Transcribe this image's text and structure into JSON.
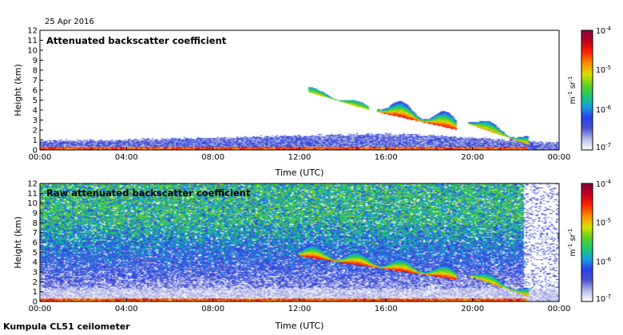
{
  "header": {
    "date": "25 Apr 2016"
  },
  "footer": {
    "instrument": "Kumpula CL51 ceilometer"
  },
  "colorbar": {
    "tick_labels": [
      "10-4",
      "10-5",
      "10-6",
      "10-7"
    ],
    "tick_values": [
      -4,
      -5,
      -6,
      -7
    ],
    "label": "m-1 sr-1",
    "range_log10": [
      -7,
      -4
    ],
    "colormap": [
      "#ffffff",
      "#b8bde8",
      "#4a55d0",
      "#2a40e8",
      "#18a0e0",
      "#20c870",
      "#60d020",
      "#d8e000",
      "#ff9000",
      "#ff2000",
      "#c00020",
      "#8a0040"
    ]
  },
  "chart_data": [
    {
      "type": "heatmap",
      "title": "Attenuated backscatter coefficient",
      "xlabel": "Time (UTC)",
      "ylabel": "Height (km)",
      "x_tick_labels": [
        "00:00",
        "04:00",
        "08:00",
        "12:00",
        "16:00",
        "20:00",
        "00:00"
      ],
      "x_tick_hours": [
        0,
        4,
        8,
        12,
        16,
        20,
        24
      ],
      "xlim_hours": [
        0,
        24
      ],
      "y_ticks": [
        0,
        1,
        2,
        3,
        4,
        5,
        6,
        7,
        8,
        9,
        10,
        11,
        12
      ],
      "ylim_km": [
        0,
        12
      ],
      "features": [
        {
          "name": "boundary-layer",
          "start_h": 0,
          "end_h": 24,
          "bottom_km": 0,
          "top_km_by_hour": [
            [
              0,
              0.8
            ],
            [
              4,
              0.9
            ],
            [
              8,
              1.1
            ],
            [
              12,
              1.3
            ],
            [
              16,
              1.5
            ],
            [
              20,
              1.1
            ],
            [
              24,
              0.6
            ]
          ],
          "log10_range": [
            -6.8,
            -6.2
          ]
        },
        {
          "name": "surface-layer",
          "start_h": 0,
          "end_h": 22.5,
          "bottom_km": 0,
          "top_km": 0.35,
          "log10_range": [
            -5.0,
            -4.3
          ]
        },
        {
          "name": "cloud-layer",
          "start_h": 15.6,
          "end_h": 19.3,
          "base_km_start": 3.8,
          "base_km_end": 2.0,
          "thickness_km": 1.6,
          "log10_range": [
            -6.3,
            -4.4
          ]
        },
        {
          "name": "thin-cloud",
          "start_h": 12.4,
          "end_h": 15.2,
          "base_km_start": 5.8,
          "base_km_end": 4.0,
          "thickness_km": 0.6,
          "log10_range": [
            -6.0,
            -5.0
          ]
        },
        {
          "name": "low-cloud",
          "start_h": 19.8,
          "end_h": 22.6,
          "base_km_start": 2.6,
          "base_km_end": 0.5,
          "thickness_km": 1.0,
          "log10_range": [
            -6.2,
            -4.8
          ]
        }
      ]
    },
    {
      "type": "heatmap",
      "title": "Raw attenuated backscatter coefficient",
      "xlabel": "Time (UTC)",
      "ylabel": "Height (km)",
      "x_tick_labels": [
        "00:00",
        "04:00",
        "08:00",
        "12:00",
        "16:00",
        "20:00",
        "00:00"
      ],
      "x_tick_hours": [
        0,
        4,
        8,
        12,
        16,
        20,
        24
      ],
      "xlim_hours": [
        0,
        24
      ],
      "y_ticks": [
        0,
        1,
        2,
        3,
        4,
        5,
        6,
        7,
        8,
        9,
        10,
        11,
        12
      ],
      "ylim_km": [
        0,
        12
      ],
      "features": [
        {
          "name": "noise-field",
          "start_h": 0,
          "end_h": 24,
          "bottom_km": 1.0,
          "top_km": 12,
          "log10_range_low_alt": [
            -7.0,
            -6.3
          ],
          "log10_range_high_alt": [
            -6.2,
            -5.2
          ]
        },
        {
          "name": "boundary-layer",
          "start_h": 0,
          "end_h": 24,
          "bottom_km": 0,
          "top_km": 1.2,
          "log10_range": [
            -7.0,
            -6.6
          ]
        },
        {
          "name": "surface-layer",
          "start_h": 0,
          "end_h": 22.5,
          "bottom_km": 0,
          "top_km": 0.35,
          "log10_range": [
            -5.0,
            -4.3
          ]
        },
        {
          "name": "cloud-layer",
          "start_h": 12.0,
          "end_h": 19.3,
          "base_km_start": 4.6,
          "base_km_end": 2.2,
          "thickness_km": 1.4,
          "log10_range": [
            -6.3,
            -4.4
          ]
        },
        {
          "name": "low-cloud",
          "start_h": 19.8,
          "end_h": 22.6,
          "base_km_start": 2.6,
          "base_km_end": 0.5,
          "thickness_km": 1.0,
          "log10_range": [
            -6.2,
            -4.8
          ]
        },
        {
          "name": "clear-gap",
          "start_h": 22.4,
          "end_h": 24,
          "log10_value": -7.0
        }
      ]
    }
  ]
}
